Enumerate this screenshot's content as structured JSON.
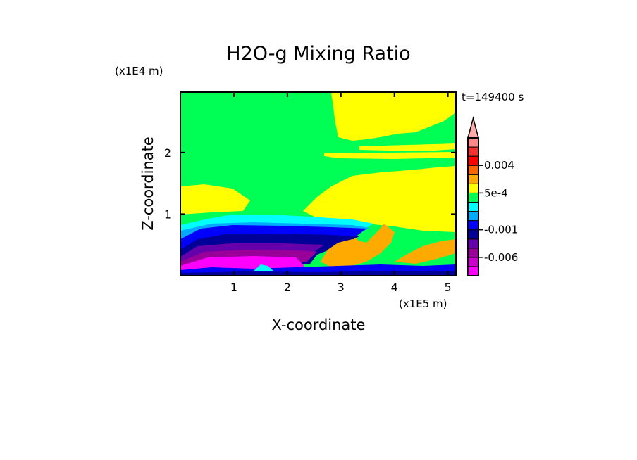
{
  "chart_data": {
    "type": "heatmap",
    "title": "H2O-g Mixing Ratio",
    "xlabel": "X-coordinate",
    "ylabel": "Z-coordinate",
    "x_scale_label": "(x1E5 m)",
    "y_scale_label": "(x1E4 m)",
    "time_label": "t=149400 s",
    "xlim": [
      0,
      5.15
    ],
    "ylim": [
      0,
      2.98
    ],
    "x_ticks": [
      "1",
      "2",
      "3",
      "4",
      "5"
    ],
    "y_ticks": [
      "1",
      "2"
    ],
    "colorbar": {
      "levels": [
        {
          "label": "",
          "color": "#ff00ff"
        },
        {
          "label": "",
          "color": "#cc00cc"
        },
        {
          "label": "-0.006",
          "color": "#990099"
        },
        {
          "label": "",
          "color": "#6600aa"
        },
        {
          "label": "",
          "color": "#000099"
        },
        {
          "label": "-0.001",
          "color": "#0000ff"
        },
        {
          "label": "",
          "color": "#00aaff"
        },
        {
          "label": "",
          "color": "#00ffff"
        },
        {
          "label": "",
          "color": "#00ff55"
        },
        {
          "label": "5e-4",
          "color": "#ffff00"
        },
        {
          "label": "",
          "color": "#ffaa00"
        },
        {
          "label": "",
          "color": "#ff6600"
        },
        {
          "label": "0.004",
          "color": "#ff0000"
        },
        {
          "label": "",
          "color": "#ee3333"
        },
        {
          "label": "",
          "color": "#ff8888"
        }
      ],
      "overflow_color": "#ffaaaa"
    }
  }
}
